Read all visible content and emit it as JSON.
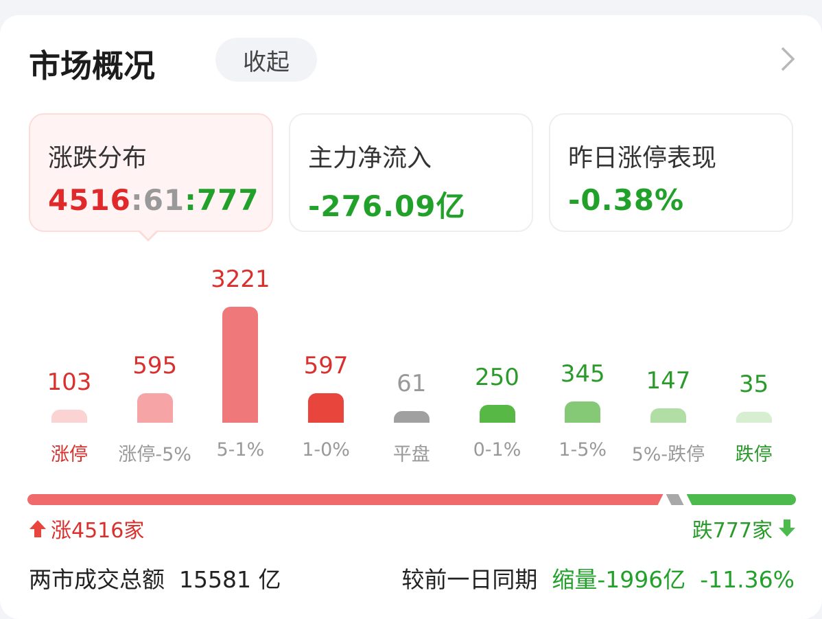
{
  "header": {
    "title": "市场概况",
    "collapse_label": "收起"
  },
  "stats": [
    {
      "label": "涨跌分布",
      "up": "4516",
      "flat": "61",
      "down": "777",
      "sep": ":"
    },
    {
      "label": "主力净流入",
      "value": "-276.09亿"
    },
    {
      "label": "昨日涨停表现",
      "value": "-0.38%"
    }
  ],
  "chart_data": {
    "type": "bar",
    "categories": [
      "涨停",
      "涨停-5%",
      "5-1%",
      "1-0%",
      "平盘",
      "0-1%",
      "1-5%",
      "5%-跌停",
      "跌停"
    ],
    "values": [
      103,
      595,
      3221,
      597,
      61,
      250,
      345,
      147,
      35
    ],
    "colors": [
      "#fbd3d3",
      "#f7a4a6",
      "#ef787b",
      "#e8453d",
      "#a0a0a0",
      "#57b845",
      "#85c976",
      "#b1dea4",
      "#d7eed1"
    ],
    "label_colors": [
      "#d9302e",
      "#d9302e",
      "#d9302e",
      "#d9302e",
      "#999999",
      "#2a9a2a",
      "#2a9a2a",
      "#2a9a2a",
      "#2a9a2a"
    ],
    "category_colors": [
      "#d9302e",
      "#999999",
      "#999999",
      "#999999",
      "#999999",
      "#999999",
      "#999999",
      "#999999",
      "#2a9a2a"
    ]
  },
  "breadth": {
    "up_label": "涨4516家",
    "down_label": "跌777家",
    "up": 4516,
    "flat": 61,
    "down": 777
  },
  "footer": {
    "turnover_label": "两市成交总额",
    "turnover_value": "15581 亿",
    "compare_label": "较前一日同期",
    "change": "缩量-1996亿",
    "change_pct": "-11.36%"
  }
}
